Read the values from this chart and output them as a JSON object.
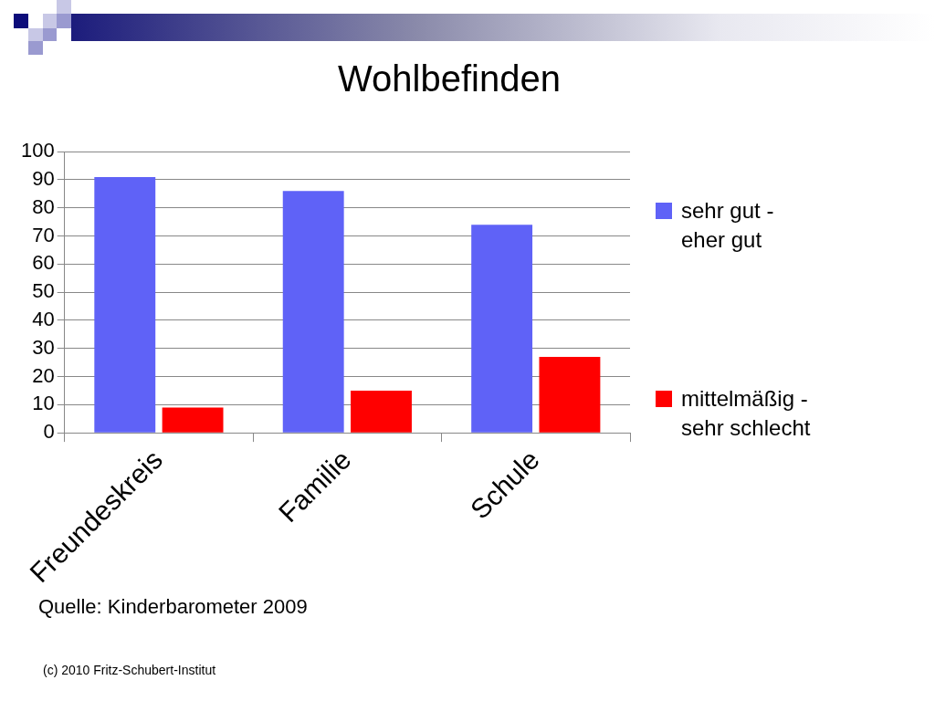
{
  "chart_data": {
    "type": "bar",
    "title": "Wohlbefinden",
    "categories": [
      "Freundeskreis",
      "Familie",
      "Schule"
    ],
    "series": [
      {
        "name": "sehr gut - eher gut",
        "color": "#5f62f7",
        "values": [
          91,
          86,
          74
        ]
      },
      {
        "name": "mittelmäßig - sehr schlecht",
        "color": "#ff0000",
        "values": [
          9,
          15,
          27
        ]
      }
    ],
    "ylim": [
      0,
      100
    ],
    "yticks": [
      0,
      10,
      20,
      30,
      40,
      50,
      60,
      70,
      80,
      90,
      100
    ],
    "grid": "y",
    "legend": "right",
    "annotations": [
      "Quelle: Kinderbarometer 2009",
      "(c) 2010 Fritz-Schubert-Institut"
    ]
  }
}
